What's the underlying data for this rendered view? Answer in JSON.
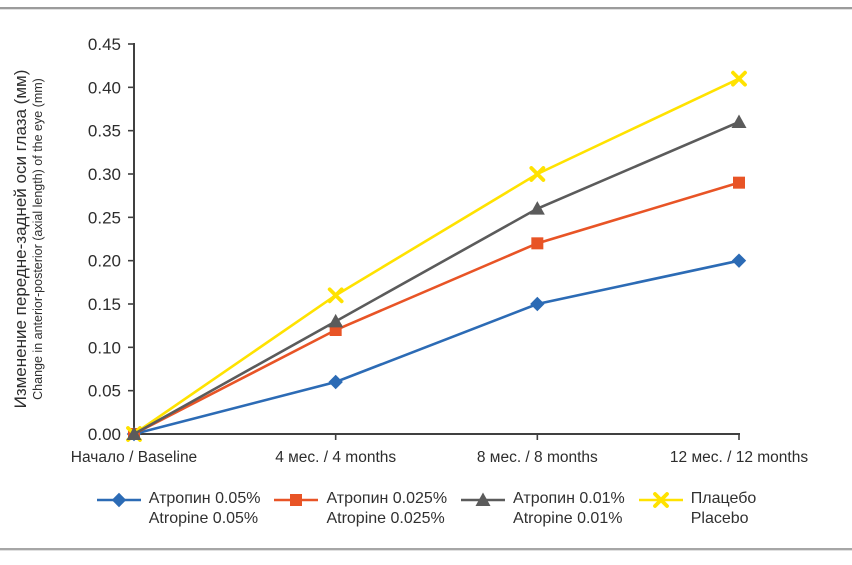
{
  "figure": {
    "y_axis_label_ru": "Изменение передне-задней оси глаза (мм)",
    "y_axis_label_en": "Change in anterior-posterior (axial length) of the eye (mm)"
  },
  "chart_data": {
    "type": "line",
    "title": "",
    "xlabel": "",
    "ylabel_ru": "Изменение передне-задней оси глаза (мм)",
    "ylabel_en": "Change in anterior-posterior (axial length) of the eye (mm)",
    "categories": [
      "Начало / Baseline",
      "4 мес. / 4 months",
      "8 мес. / 8 months",
      "12 мес. / 12 months"
    ],
    "y_ticks": [
      "0.00",
      "0.05",
      "0.10",
      "0.15",
      "0.20",
      "0.25",
      "0.30",
      "0.35",
      "0.40",
      "0.45"
    ],
    "ylim": [
      0,
      0.45
    ],
    "grid": false,
    "legend_position": "bottom",
    "axis_color": "#404040",
    "series": [
      {
        "name_ru": "Атропин 0.05%",
        "name_en": "Atropine 0.05%",
        "marker": "diamond",
        "color": "#2C6BB5",
        "values": [
          0.0,
          0.06,
          0.15,
          0.2
        ]
      },
      {
        "name_ru": "Атропин 0.025%",
        "name_en": "Atropine 0.025%",
        "marker": "square",
        "color": "#E85426",
        "values": [
          0.0,
          0.12,
          0.22,
          0.29
        ]
      },
      {
        "name_ru": "Атропин 0.01%",
        "name_en": "Atropine 0.01%",
        "marker": "triangle",
        "color": "#5B5B5B",
        "values": [
          0.0,
          0.13,
          0.26,
          0.36
        ]
      },
      {
        "name_ru": "Плацебо",
        "name_en": "Placebo",
        "marker": "x",
        "color": "#FFE200",
        "values": [
          0.0,
          0.16,
          0.3,
          0.41
        ]
      }
    ]
  }
}
